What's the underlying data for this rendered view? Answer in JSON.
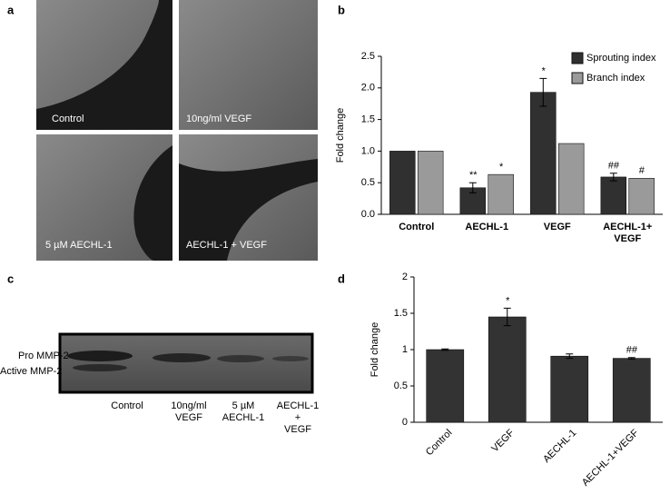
{
  "panels": {
    "a": "a",
    "b": "b",
    "c": "c",
    "d": "d"
  },
  "micrographs": {
    "captions": [
      "Control",
      "10ng/ml VEGF",
      "5 µM AECHL-1",
      "AECHL-1 + VEGF"
    ]
  },
  "gel": {
    "band_labels": [
      "Pro MMP-2",
      "Active MMP-2"
    ],
    "lanes": [
      "Control",
      "10ng/ml\nVEGF",
      "5 µM\nAECHL-1",
      "AECHL-1\n+\nVEGF"
    ]
  },
  "chart_data": [
    {
      "type": "bar",
      "ylabel": "Fold change",
      "categories": [
        "Control",
        "AECHL-1",
        "VEGF",
        "AECHL-1+\nVEGF"
      ],
      "series": [
        {
          "name": "Sprouting index",
          "color": "#303030",
          "values": [
            1.0,
            0.42,
            1.93,
            0.59
          ],
          "errors": [
            0,
            0.08,
            0.22,
            0.06
          ],
          "markers": [
            null,
            "**",
            "*",
            "##"
          ]
        },
        {
          "name": "Branch index",
          "color": "#9a9a9a",
          "values": [
            1.0,
            0.63,
            1.12,
            0.57
          ],
          "errors": [
            0,
            0,
            0,
            0
          ],
          "markers": [
            null,
            "*",
            null,
            "#"
          ]
        }
      ],
      "ylim": [
        0,
        2.5
      ],
      "yticks": [
        {
          "value": 0,
          "label": "0.0"
        },
        0.5,
        {
          "value": 1,
          "label": "1.0"
        },
        1.5,
        {
          "value": 2,
          "label": "2.0"
        },
        2.5
      ],
      "legend": "upper right",
      "xtick_rotation": 0
    },
    {
      "type": "bar",
      "ylabel": "Fold change",
      "categories": [
        "Control",
        "VEGF",
        "AECHL-1",
        "AECHL-1+VEGF"
      ],
      "series": [
        {
          "color": "#333333",
          "values": [
            1.0,
            1.45,
            0.91,
            0.88
          ],
          "errors": [
            0.01,
            0.12,
            0.03,
            0.01
          ],
          "markers": [
            null,
            "*",
            null,
            "##"
          ]
        }
      ],
      "ylim": [
        0,
        2
      ],
      "yticks": [
        0,
        0.5,
        1,
        1.5,
        2
      ],
      "xtick_rotation": -45
    }
  ]
}
